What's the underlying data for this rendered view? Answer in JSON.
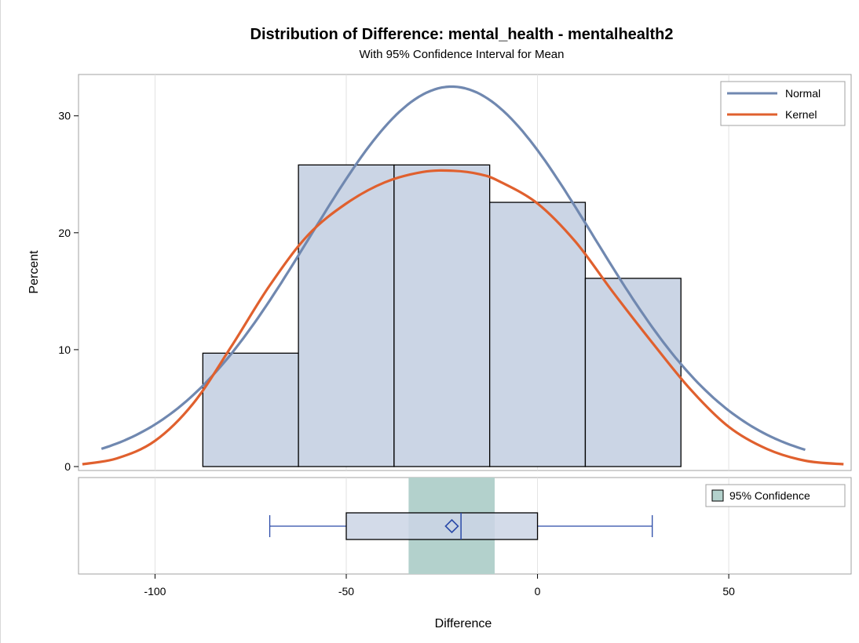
{
  "chart_data": {
    "type": "bar",
    "title": "Distribution of Difference: mental_health - mentalhealth2",
    "subtitle": "With 95% Confidence Interval for Mean",
    "xlabel": "Difference",
    "ylabel": "Percent",
    "xlim": [
      -120,
      82
    ],
    "ylim": [
      0,
      33
    ],
    "x_ticks": [
      -100,
      -50,
      0,
      50
    ],
    "y_ticks": [
      0,
      10,
      20,
      30
    ],
    "grid": {
      "vertical": true,
      "horizontal": false
    },
    "bins": [
      {
        "x0": -87.5,
        "x1": -62.5,
        "value": 9.7
      },
      {
        "x0": -62.5,
        "x1": -37.5,
        "value": 25.8
      },
      {
        "x0": -37.5,
        "x1": -12.5,
        "value": 25.8
      },
      {
        "x0": -12.5,
        "x1": 12.5,
        "value": 22.6
      },
      {
        "x0": 12.5,
        "x1": 37.5,
        "value": 16.1
      }
    ],
    "series": [
      {
        "name": "Normal",
        "type": "line",
        "color": "#7088b0",
        "mean": -22.4,
        "sd": 37.0,
        "peak": 32.5,
        "x_range": [
          -114,
          70
        ]
      },
      {
        "name": "Kernel",
        "type": "line",
        "color": "#e0602e",
        "x_range": [
          -119,
          80
        ],
        "points": [
          [
            -119,
            0.2
          ],
          [
            -110,
            0.7
          ],
          [
            -100,
            2.2
          ],
          [
            -90,
            5.4
          ],
          [
            -80,
            10.3
          ],
          [
            -70,
            15.5
          ],
          [
            -60,
            19.8
          ],
          [
            -50,
            22.5
          ],
          [
            -40,
            24.3
          ],
          [
            -30,
            25.2
          ],
          [
            -22,
            25.3
          ],
          [
            -15,
            25.0
          ],
          [
            -10,
            24.4
          ],
          [
            0,
            22.5
          ],
          [
            10,
            19.2
          ],
          [
            20,
            14.8
          ],
          [
            30,
            10.6
          ],
          [
            40,
            6.6
          ],
          [
            50,
            3.4
          ],
          [
            60,
            1.5
          ],
          [
            70,
            0.5
          ],
          [
            80,
            0.2
          ]
        ]
      }
    ],
    "boxplot": {
      "whisker_low": -70,
      "q1": -50,
      "median": -20,
      "mean": -22.4,
      "q3": 0,
      "whisker_high": 30
    },
    "confidence_interval": {
      "label": "95% Confidence",
      "low": -33.7,
      "high": -11.2,
      "color": "#b3d1cc"
    },
    "colors": {
      "bar_fill": "#cbd5e5",
      "bar_stroke": "#000000",
      "box_stroke": "#2a4aa8",
      "grid": "#e2e2e2"
    }
  }
}
